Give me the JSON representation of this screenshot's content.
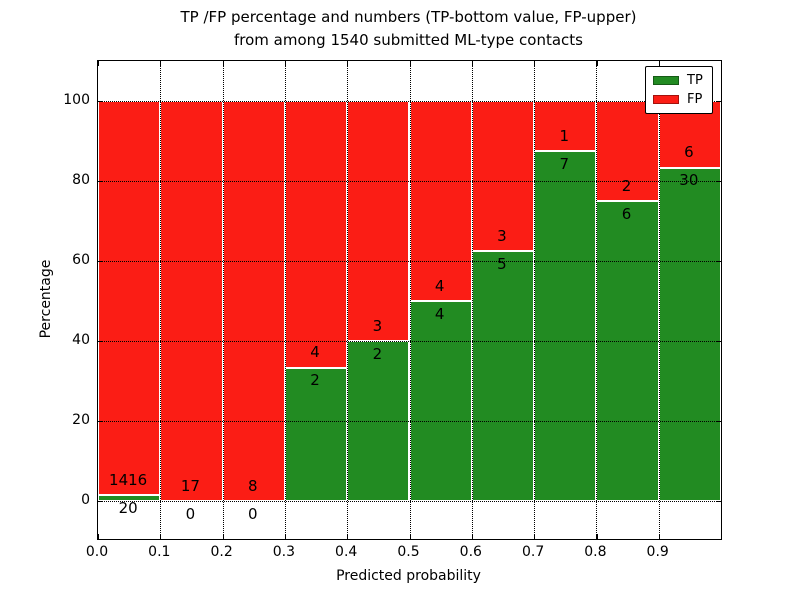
{
  "figure": {
    "title_line1": "TP /FP percentage and numbers (TP-bottom value, FP-upper)",
    "title_line2": "from among 1540 submitted ML-type contacts"
  },
  "chart_data": {
    "type": "bar",
    "stacked": true,
    "normalized_to": 100,
    "title": "TP /FP percentage and numbers (TP-bottom value, FP-upper)\nfrom among 1540 submitted ML-type contacts",
    "xlabel": "Predicted probability",
    "ylabel": "Percentage",
    "total_contacts": 1540,
    "bin_width": 0.1,
    "bin_starts": [
      0.0,
      0.1,
      0.2,
      0.3,
      0.4,
      0.5,
      0.6,
      0.7,
      0.8,
      0.9
    ],
    "series": [
      {
        "name": "TP",
        "color": "#228b22",
        "counts": [
          20,
          0,
          0,
          2,
          2,
          4,
          5,
          7,
          6,
          30
        ]
      },
      {
        "name": "FP",
        "color": "#fb1d15",
        "counts": [
          1416,
          17,
          8,
          4,
          3,
          4,
          3,
          1,
          2,
          6
        ]
      }
    ],
    "tp_percent_of_bin": [
      1.4,
      0.0,
      0.0,
      33.3,
      40.0,
      50.0,
      62.5,
      87.5,
      75.0,
      83.3
    ],
    "xticks": [
      "0.0",
      "0.1",
      "0.2",
      "0.3",
      "0.4",
      "0.5",
      "0.6",
      "0.7",
      "0.8",
      "0.9"
    ],
    "yticks": [
      "0",
      "20",
      "40",
      "60",
      "80",
      "100"
    ],
    "ytick_values": [
      0,
      20,
      40,
      60,
      80,
      100
    ],
    "xlim": [
      0.0,
      1.0
    ],
    "ylim": [
      -9.5,
      110
    ],
    "grid": "dotted",
    "legend": {
      "position": "upper right",
      "entries": [
        {
          "label": "TP",
          "color": "#228b22"
        },
        {
          "label": "FP",
          "color": "#fb1d15"
        }
      ]
    }
  }
}
